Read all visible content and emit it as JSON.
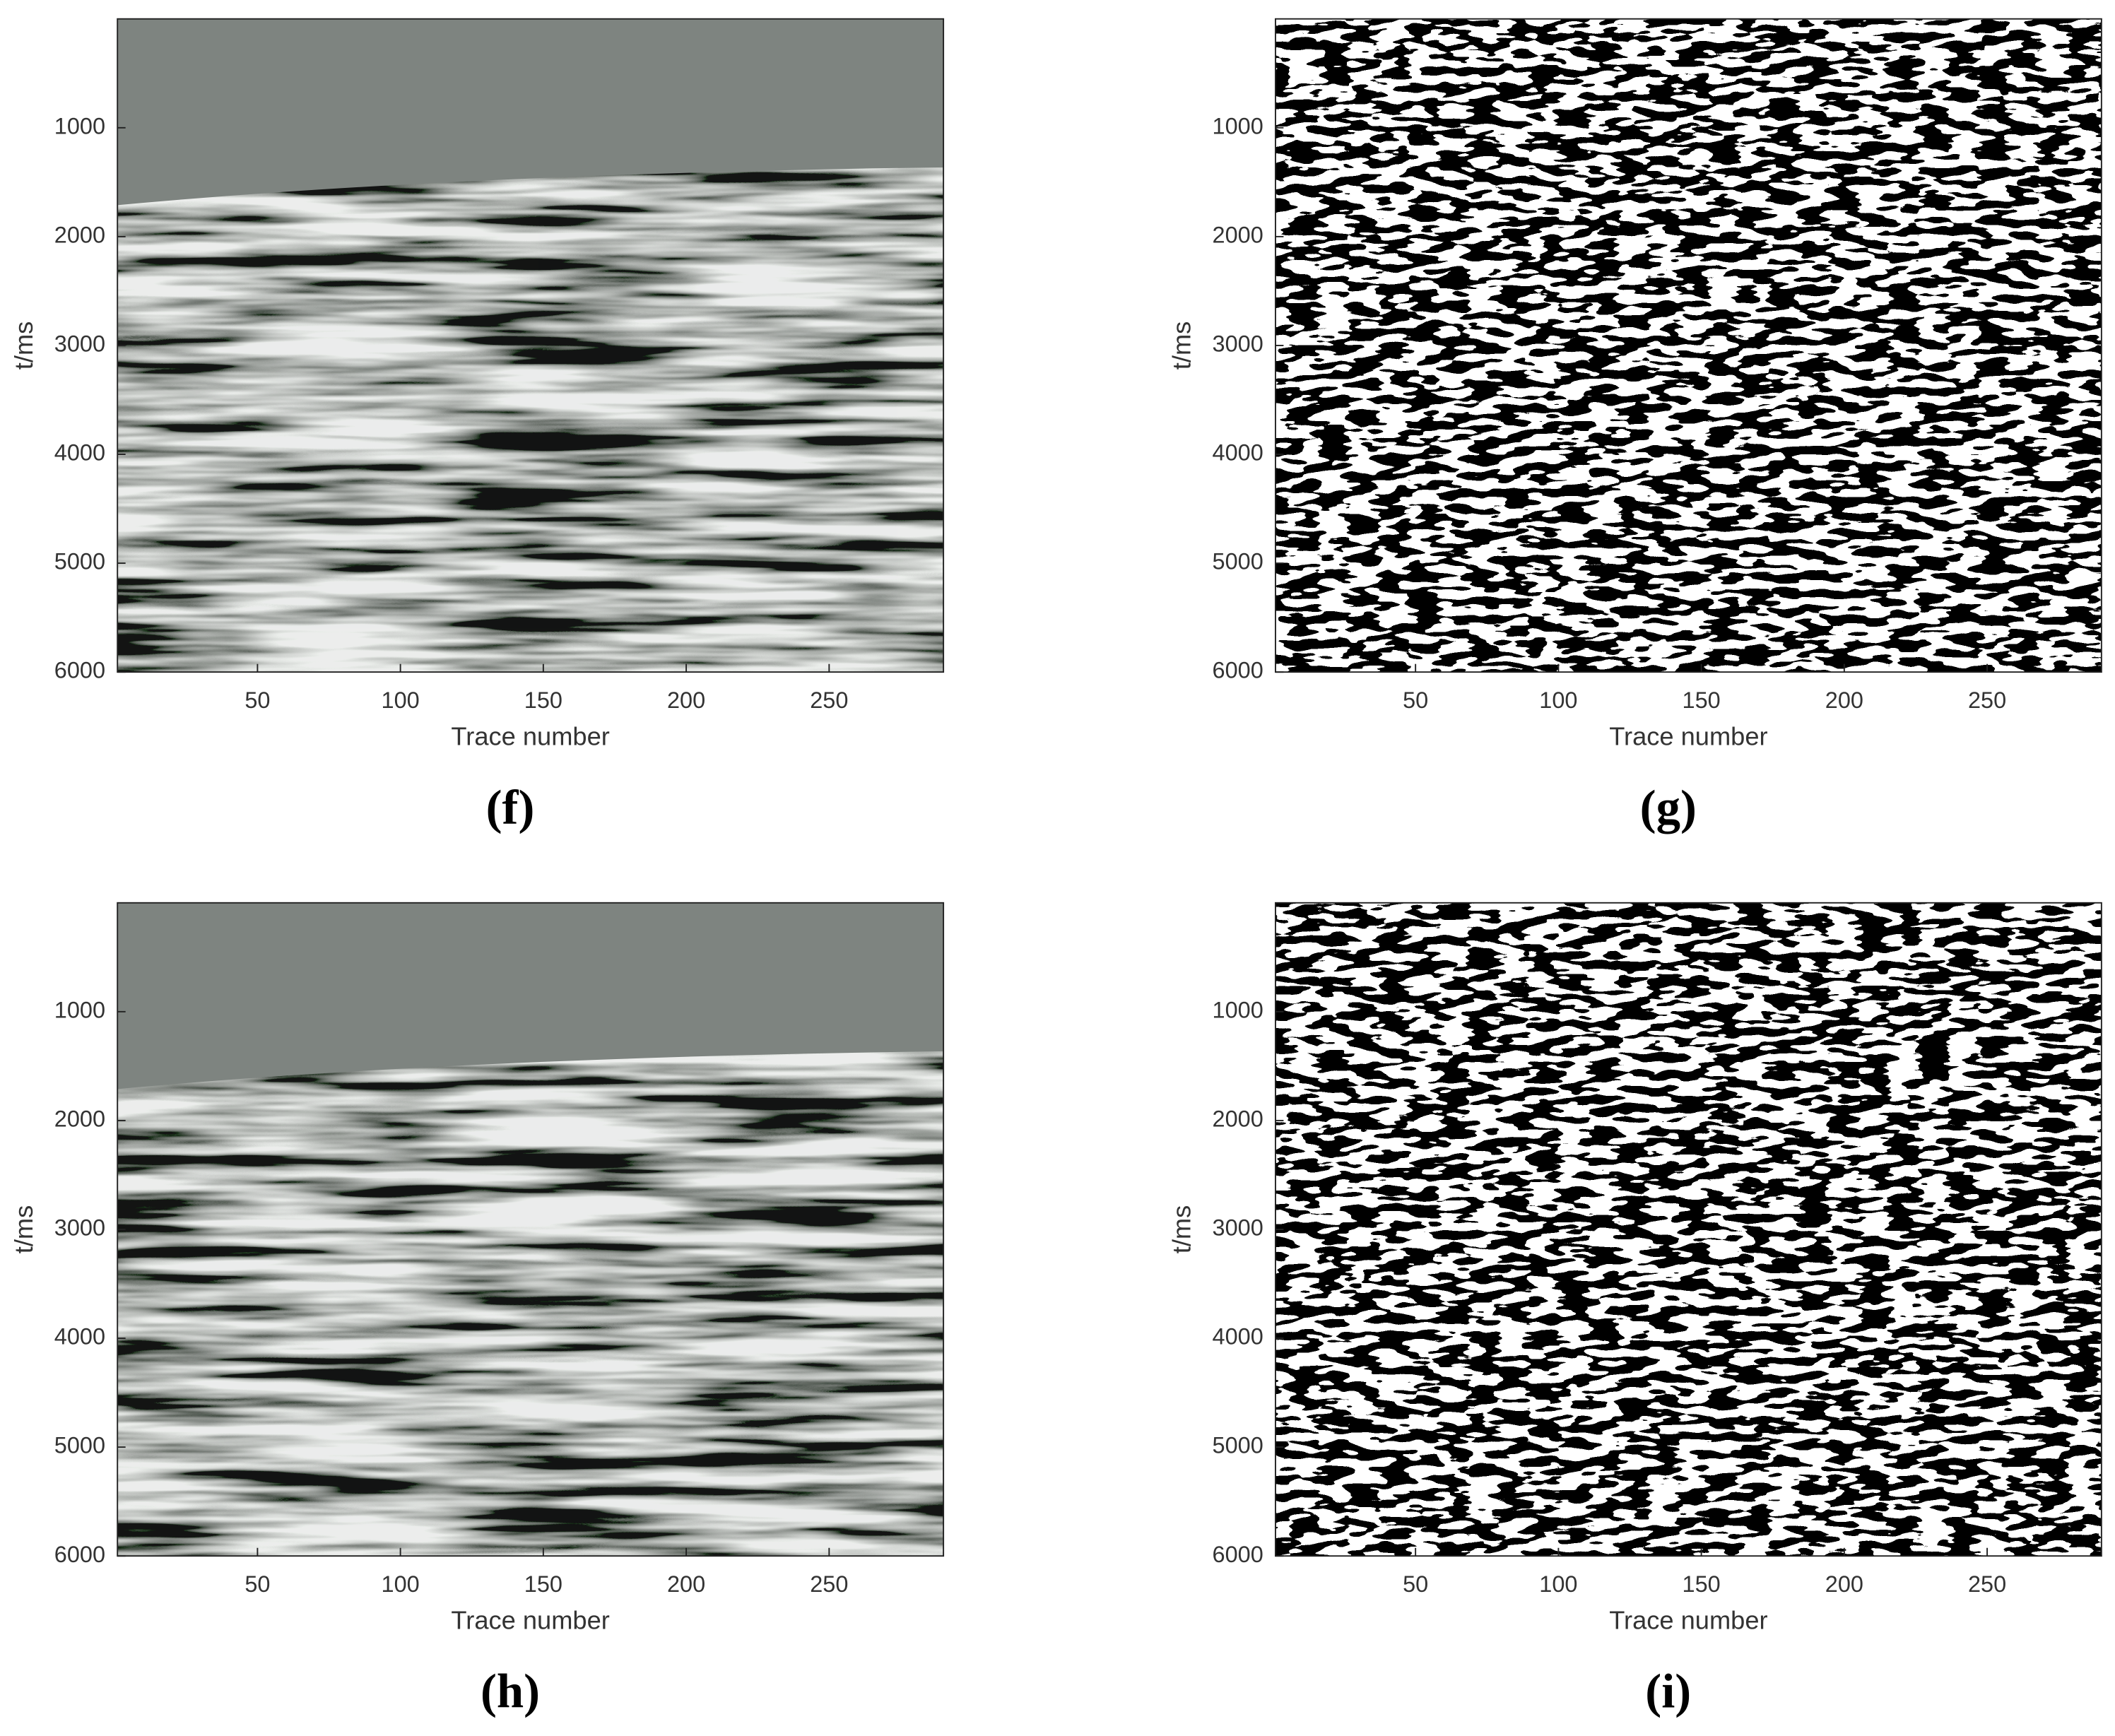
{
  "chart_data": [
    {
      "type": "image",
      "title": "(f)",
      "xlabel": "Trace number",
      "ylabel": "t/ms",
      "colormap": "gray",
      "xlim": [
        1,
        290
      ],
      "xticks": [
        50,
        100,
        150,
        200,
        250
      ],
      "ylim": [
        0,
        6000
      ],
      "yticks": [
        1000,
        2000,
        3000,
        4000,
        5000,
        6000
      ],
      "y_reversed": true
    },
    {
      "type": "image",
      "title": "(g)",
      "xlabel": "Trace number",
      "ylabel": "t/ms",
      "colormap": "binary",
      "xlim": [
        1,
        290
      ],
      "xticks": [
        50,
        100,
        150,
        200,
        250
      ],
      "ylim": [
        0,
        6000
      ],
      "yticks": [
        1000,
        2000,
        3000,
        4000,
        5000,
        6000
      ],
      "y_reversed": true
    },
    {
      "type": "image",
      "title": "(h)",
      "xlabel": "Trace number",
      "ylabel": "t/ms",
      "colormap": "gray",
      "xlim": [
        1,
        290
      ],
      "xticks": [
        50,
        100,
        150,
        200,
        250
      ],
      "ylim": [
        0,
        6000
      ],
      "yticks": [
        1000,
        2000,
        3000,
        4000,
        5000,
        6000
      ],
      "y_reversed": true
    },
    {
      "type": "image",
      "title": "(i)",
      "xlabel": "Trace number",
      "ylabel": "t/ms",
      "colormap": "binary",
      "xlim": [
        1,
        290
      ],
      "xticks": [
        50,
        100,
        150,
        200,
        250
      ],
      "ylim": [
        0,
        6000
      ],
      "yticks": [
        1000,
        2000,
        3000,
        4000,
        5000,
        6000
      ],
      "y_reversed": true
    }
  ]
}
